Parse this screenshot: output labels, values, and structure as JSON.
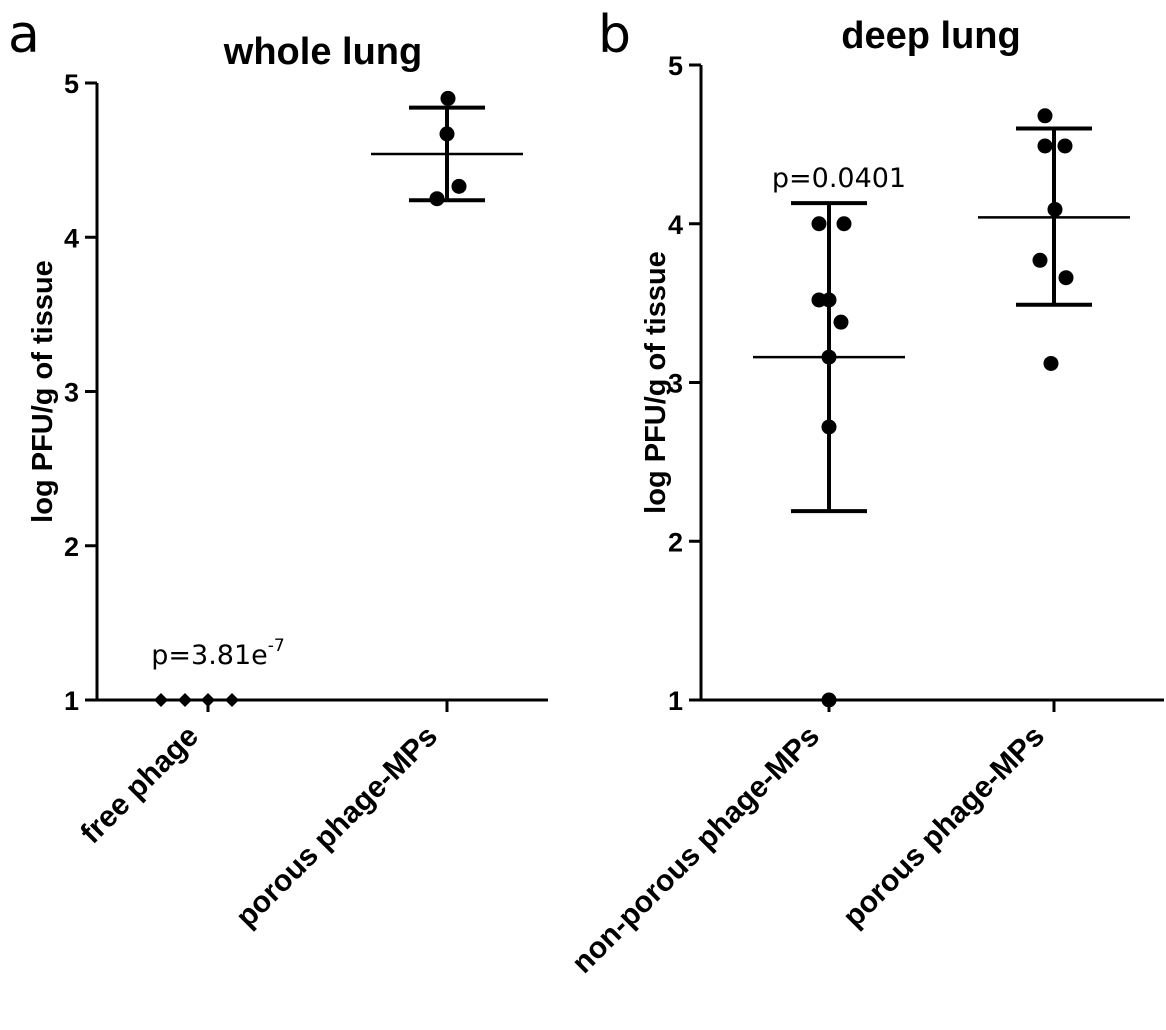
{
  "chart_data": [
    {
      "panel": "a",
      "type": "scatter",
      "title": "whole lung",
      "ylabel": "log PFU/g of tissue",
      "xlabel": "",
      "ylim": [
        1,
        5
      ],
      "yticks": [
        1,
        2,
        3,
        4,
        5
      ],
      "grid": false,
      "categories": [
        "free phage",
        "porous phage-MPs"
      ],
      "groups": [
        {
          "category": "free phage",
          "marker": "diamond",
          "points": [
            1.0,
            1.0,
            1.0,
            1.0
          ],
          "mean": null,
          "error": null,
          "annotation": {
            "base": "p=3.81e",
            "sup": "-7"
          }
        },
        {
          "category": "porous phage-MPs",
          "marker": "circle",
          "points": [
            4.9,
            4.67,
            4.33,
            4.25
          ],
          "mean": 4.54,
          "error": [
            4.24,
            4.84
          ],
          "annotation": null
        }
      ]
    },
    {
      "panel": "b",
      "type": "scatter",
      "title": "deep lung",
      "ylabel": "log PFU/g of tissue",
      "xlabel": "",
      "ylim": [
        1,
        5
      ],
      "yticks": [
        1,
        2,
        3,
        4,
        5
      ],
      "grid": false,
      "categories": [
        "non-porous phage-MPs",
        "porous phage-MPs"
      ],
      "groups": [
        {
          "category": "non-porous phage-MPs",
          "marker": "circle",
          "points": [
            4.0,
            4.0,
            3.52,
            3.52,
            3.38,
            3.16,
            2.72,
            1.0
          ],
          "mean": 3.16,
          "error": [
            2.19,
            4.13
          ],
          "annotation": {
            "base": "p=0.0401",
            "sup": ""
          }
        },
        {
          "category": "porous phage-MPs",
          "marker": "circle",
          "points": [
            4.68,
            4.49,
            4.49,
            4.09,
            3.77,
            3.66,
            3.12
          ],
          "mean": 4.04,
          "error": [
            3.49,
            4.6
          ],
          "annotation": null
        }
      ]
    }
  ]
}
